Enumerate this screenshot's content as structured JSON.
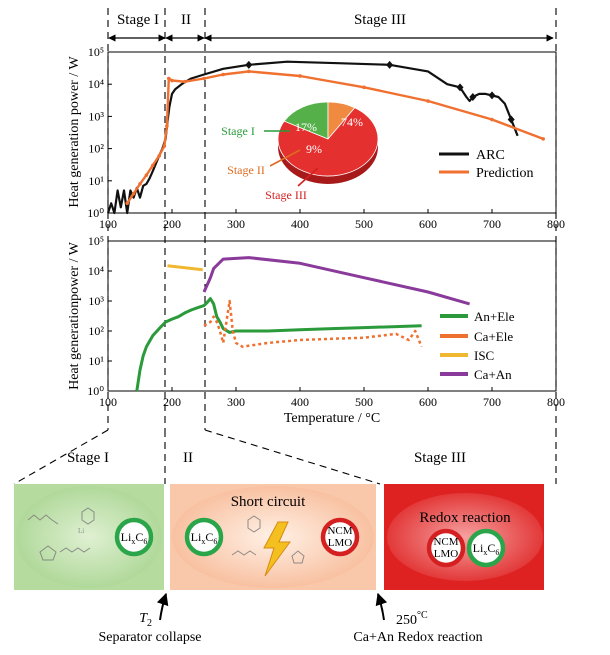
{
  "stages": {
    "stage1_label": "Stage I",
    "stage2_label": "II",
    "stage3_label": "Stage III"
  },
  "chart_data": [
    {
      "type": "line",
      "ylabel": "Heat generation power / W",
      "yscale": "log",
      "xlim": [
        100,
        800
      ],
      "ylim": [
        1,
        100000
      ],
      "x_ticks": [
        100,
        200,
        300,
        400,
        500,
        600,
        700,
        800
      ],
      "y_ticks": [
        "10⁰",
        "10¹",
        "10²",
        "10³",
        "10⁴",
        "10⁵"
      ],
      "legend_position": "lower-right",
      "series": [
        {
          "name": "ARC",
          "color": "#111111",
          "x": [
            100,
            105,
            110,
            115,
            120,
            125,
            130,
            135,
            140,
            145,
            150,
            155,
            160,
            165,
            170,
            175,
            180,
            185,
            190,
            193,
            196,
            200,
            205,
            215,
            230,
            250,
            280,
            320,
            380,
            460,
            540,
            600,
            630,
            650,
            660,
            665,
            670,
            680,
            690,
            700,
            710,
            720,
            730,
            740
          ],
          "y": [
            1,
            2,
            1,
            5,
            1.5,
            5,
            1,
            5,
            3,
            6,
            3,
            7,
            8,
            12,
            20,
            35,
            60,
            100,
            200,
            700,
            2000,
            5000,
            7000,
            10000,
            15000,
            20000,
            30000,
            40000,
            50000,
            45000,
            40000,
            25000,
            10000,
            8000,
            4000,
            3000,
            4000,
            5000,
            5000,
            4500,
            4000,
            2500,
            800,
            250
          ]
        },
        {
          "name": "Prediction",
          "color": "#f07030",
          "x": [
            130,
            140,
            150,
            160,
            170,
            180,
            188,
            192,
            195,
            200,
            220,
            250,
            280,
            320,
            400,
            500,
            600,
            700,
            780
          ],
          "y": [
            2,
            4,
            8,
            15,
            30,
            60,
            120,
            500,
            15000,
            13000,
            12000,
            15000,
            20000,
            25000,
            18000,
            8000,
            3000,
            800,
            200
          ]
        }
      ],
      "pie": {
        "labels": [
          "Stage I",
          "Stage II",
          "Stage III"
        ],
        "values": [
          17,
          9,
          74
        ],
        "value_labels": [
          "17%",
          "9%",
          "74%"
        ],
        "colors": [
          "#55b04a",
          "#f08a40",
          "#e53030"
        ]
      }
    },
    {
      "type": "line",
      "ylabel": "Heat generationpower / W",
      "xlabel": "Temperature / °C",
      "yscale": "log",
      "xlim": [
        100,
        800
      ],
      "ylim": [
        1,
        100000
      ],
      "x_ticks": [
        100,
        200,
        300,
        400,
        500,
        600,
        700,
        800
      ],
      "y_ticks": [
        "10⁰",
        "10¹",
        "10²",
        "10³",
        "10⁴",
        "10⁵"
      ],
      "legend_position": "right",
      "series": [
        {
          "name": "An+Ele",
          "color": "#2a9a3a",
          "x": [
            145,
            150,
            155,
            160,
            170,
            180,
            190,
            200,
            210,
            220,
            230,
            240,
            250,
            255,
            260,
            265,
            270,
            275,
            280,
            290,
            300,
            350,
            400,
            450,
            500,
            550,
            590
          ],
          "y": [
            1,
            5,
            15,
            30,
            70,
            120,
            200,
            250,
            300,
            400,
            500,
            600,
            700,
            900,
            1200,
            800,
            300,
            200,
            120,
            90,
            100,
            100,
            110,
            120,
            130,
            140,
            150
          ]
        },
        {
          "name": "Ca+Ele",
          "color": "#f07030",
          "x": [
            250,
            260,
            265,
            270,
            275,
            280,
            285,
            290,
            295,
            300,
            310,
            350,
            400,
            450,
            500,
            550,
            570,
            580,
            590
          ],
          "y": [
            150,
            200,
            300,
            200,
            100,
            40,
            200,
            1000,
            100,
            40,
            30,
            40,
            50,
            55,
            60,
            80,
            50,
            100,
            30
          ]
        },
        {
          "name": "ISC",
          "color": "#f0b830",
          "x": [
            193,
            248
          ],
          "y": [
            15000,
            11000
          ]
        },
        {
          "name": "Ca+An",
          "color": "#8a3a9a",
          "x": [
            250,
            260,
            265,
            280,
            320,
            400,
            500,
            600,
            665
          ],
          "y": [
            2000,
            6000,
            12000,
            25000,
            28000,
            18000,
            6000,
            2000,
            800
          ]
        }
      ]
    }
  ],
  "panels": {
    "stage1_title": "Stage I",
    "stage2_title": "II",
    "stage3_title": "Stage III",
    "short_circuit_title": "Short circuit",
    "redox_title": "Redox reaction",
    "ncm_lmo_line1": "NCM",
    "ncm_lmo_line2": "LMO",
    "lic6_base": "Li",
    "lic6_sub1": "x",
    "lic6_mid": "C",
    "lic6_sub2": "6"
  },
  "bottom": {
    "t2_symbol": "T",
    "t2_sub": "2",
    "separator_label": "Separator collapse",
    "temp_250": "250",
    "temp_250_unit": "°C",
    "redox_label": "Ca+An Redox reaction"
  }
}
